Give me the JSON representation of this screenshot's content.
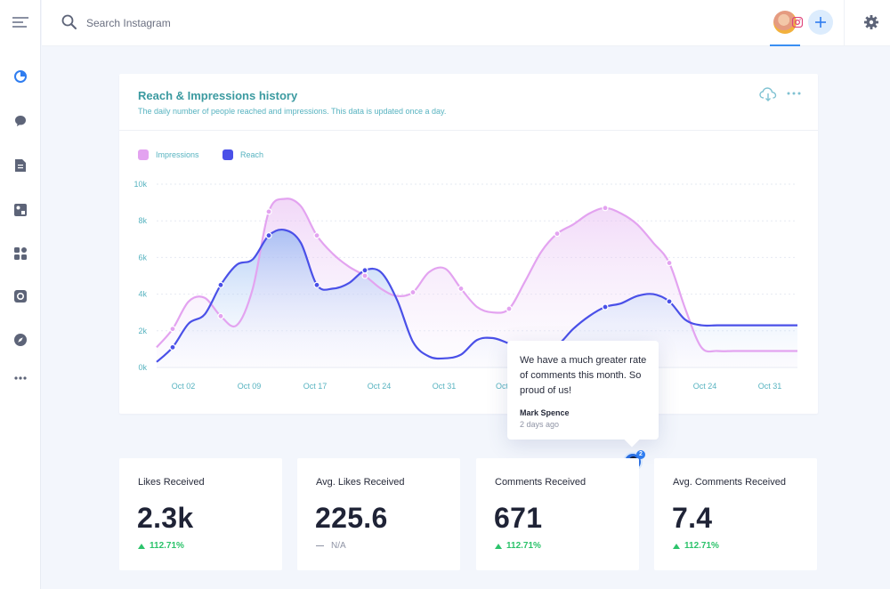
{
  "topbar": {
    "search_placeholder": "Search Instagram"
  },
  "colors": {
    "accent_blue": "#3a8ff2",
    "impressions": "#e3a3f0",
    "reach": "#4a50e8",
    "positive": "#2cc36b",
    "title_teal": "#3b9aa0"
  },
  "sidebar": {
    "icons": [
      "menu-icon",
      "analytics-icon",
      "message-icon",
      "document-icon",
      "media-icon",
      "apps-icon",
      "camera-icon",
      "compass-icon",
      "more-icon"
    ]
  },
  "chart_card": {
    "title": "Reach & Impressions history",
    "subtitle": "The daily number of people reached and impressions. This data is updated once a day.",
    "legend": {
      "impressions": "Impressions",
      "reach": "Reach"
    }
  },
  "chart_data": {
    "type": "area",
    "legend_placement": "top-left",
    "grid": true,
    "ylim": [
      0,
      10000
    ],
    "y_ticks": [
      "0k",
      "2k",
      "4k",
      "6k",
      "8k",
      "10k"
    ],
    "x_ticks": [
      "Oct 02",
      "Oct 09",
      "Oct 17",
      "Oct 24",
      "Oct 31",
      "Oct",
      "Oct 24",
      "Oct 31"
    ],
    "x_index": [
      0,
      1,
      2,
      3,
      4,
      5,
      6,
      7,
      8,
      9,
      10,
      11,
      12,
      13,
      14,
      15,
      16,
      17,
      18,
      19,
      20,
      21,
      22,
      23,
      24,
      25,
      26,
      27,
      28,
      29,
      30,
      31,
      32,
      33,
      34,
      35,
      36,
      37,
      38,
      39,
      40
    ],
    "series": [
      {
        "name": "Impressions",
        "color": "#e3a3f0",
        "values": [
          1100,
          2100,
          3600,
          3800,
          2800,
          2300,
          4300,
          8500,
          9200,
          8800,
          7200,
          6200,
          5500,
          5000,
          4300,
          3900,
          4100,
          5200,
          5400,
          4300,
          3300,
          3000,
          3200,
          4700,
          6300,
          7300,
          7800,
          8400,
          8700,
          8400,
          7800,
          6800,
          5700,
          3200,
          1100,
          900,
          900,
          900,
          900,
          900,
          900
        ]
      },
      {
        "name": "Reach",
        "color": "#4a50e8",
        "values": [
          300,
          1100,
          2400,
          2900,
          4500,
          5600,
          5900,
          7200,
          7500,
          6800,
          4500,
          4300,
          4600,
          5300,
          5200,
          3700,
          1400,
          600,
          500,
          700,
          1500,
          1600,
          1300,
          900,
          900,
          1200,
          2100,
          2800,
          3300,
          3500,
          3900,
          4000,
          3600,
          2600,
          2300,
          2300,
          2300,
          2300,
          2300,
          2300,
          2300
        ]
      }
    ]
  },
  "tooltip": {
    "text": "We have a much greater rate of comments this month. So proud of us!",
    "author": "Mark Spence",
    "time": "2 days ago",
    "badge_count": "2"
  },
  "stats": [
    {
      "label": "Likes Received",
      "value": "2.3k",
      "change": "112.71%",
      "trend": "up"
    },
    {
      "label": "Avg. Likes Received",
      "value": "225.6",
      "change": "N/A",
      "trend": "neutral"
    },
    {
      "label": "Comments Received",
      "value": "671",
      "change": "112.71%",
      "trend": "up"
    },
    {
      "label": "Avg. Comments Received",
      "value": "7.4",
      "change": "112.71%",
      "trend": "up"
    }
  ]
}
